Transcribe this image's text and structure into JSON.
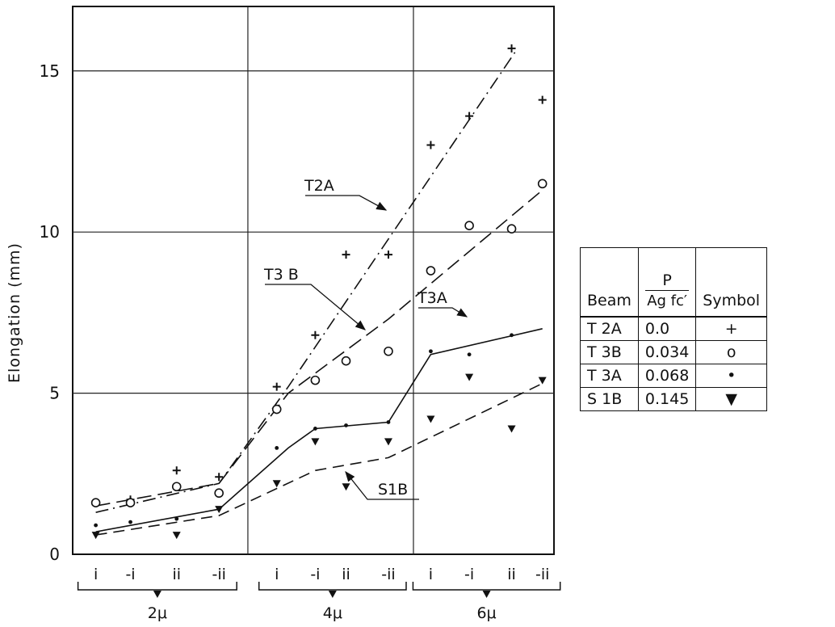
{
  "chart_data": {
    "type": "scatter",
    "ylabel": "Elongation  (mm)",
    "ylim": [
      0,
      17
    ],
    "yticks": [
      0,
      5,
      10,
      15
    ],
    "grid": true,
    "groups": [
      {
        "label": "2μ",
        "conditions": [
          "i",
          "-i",
          "ii",
          "-ii"
        ]
      },
      {
        "label": "4μ",
        "conditions": [
          "i",
          "-i",
          "ii",
          "-ii"
        ]
      },
      {
        "label": "6μ",
        "conditions": [
          "i",
          "-i",
          "ii",
          "-ii"
        ]
      }
    ],
    "series": [
      {
        "name": "T2A",
        "symbol": "+",
        "line_style": "dash-dot",
        "points": [
          {
            "x": 1.0,
            "y": 1.7
          },
          {
            "x": 2.2,
            "y": 2.6
          },
          {
            "x": 3.3,
            "y": 2.4
          },
          {
            "x": 4.8,
            "y": 5.2
          },
          {
            "x": 5.8,
            "y": 6.8
          },
          {
            "x": 6.6,
            "y": 9.3
          },
          {
            "x": 7.7,
            "y": 9.3
          },
          {
            "x": 8.8,
            "y": 12.7
          },
          {
            "x": 9.8,
            "y": 13.6
          },
          {
            "x": 10.9,
            "y": 15.7
          },
          {
            "x": 11.7,
            "y": 14.1
          }
        ],
        "fit": [
          {
            "x": 0.1,
            "y": 1.3
          },
          {
            "x": 3.3,
            "y": 2.2
          },
          {
            "x": 5.1,
            "y": 5.2
          },
          {
            "x": 11.0,
            "y": 15.6
          }
        ]
      },
      {
        "name": "T3B",
        "symbol": "o",
        "line_style": "long-dash",
        "points": [
          {
            "x": 0.1,
            "y": 1.6
          },
          {
            "x": 1.0,
            "y": 1.6
          },
          {
            "x": 2.2,
            "y": 2.1
          },
          {
            "x": 3.3,
            "y": 1.9
          },
          {
            "x": 4.8,
            "y": 4.5
          },
          {
            "x": 5.8,
            "y": 5.4
          },
          {
            "x": 6.6,
            "y": 6.0
          },
          {
            "x": 7.7,
            "y": 6.3
          },
          {
            "x": 8.8,
            "y": 8.8
          },
          {
            "x": 9.8,
            "y": 10.2
          },
          {
            "x": 10.9,
            "y": 10.1
          },
          {
            "x": 11.7,
            "y": 11.5
          }
        ],
        "fit": [
          {
            "x": 0.1,
            "y": 1.5
          },
          {
            "x": 3.3,
            "y": 2.2
          },
          {
            "x": 5.1,
            "y": 5.0
          },
          {
            "x": 7.7,
            "y": 7.3
          },
          {
            "x": 11.7,
            "y": 11.3
          }
        ]
      },
      {
        "name": "T3A",
        "symbol": "•",
        "line_style": "solid",
        "points": [
          {
            "x": 0.1,
            "y": 0.9
          },
          {
            "x": 1.0,
            "y": 1.0
          },
          {
            "x": 2.2,
            "y": 1.1
          },
          {
            "x": 3.3,
            "y": 1.4
          },
          {
            "x": 4.8,
            "y": 3.3
          },
          {
            "x": 5.8,
            "y": 3.9
          },
          {
            "x": 6.6,
            "y": 4.0
          },
          {
            "x": 7.7,
            "y": 4.1
          },
          {
            "x": 8.8,
            "y": 6.3
          },
          {
            "x": 9.8,
            "y": 6.2
          },
          {
            "x": 10.9,
            "y": 6.8
          }
        ],
        "fit": [
          {
            "x": 0.1,
            "y": 0.7
          },
          {
            "x": 3.3,
            "y": 1.4
          },
          {
            "x": 5.1,
            "y": 3.3
          },
          {
            "x": 5.8,
            "y": 3.9
          },
          {
            "x": 7.7,
            "y": 4.1
          },
          {
            "x": 8.8,
            "y": 6.2
          },
          {
            "x": 11.7,
            "y": 7.0
          }
        ]
      },
      {
        "name": "S1B",
        "symbol": "▼",
        "line_style": "dashed",
        "points": [
          {
            "x": 0.1,
            "y": 0.6
          },
          {
            "x": 2.2,
            "y": 0.6
          },
          {
            "x": 3.3,
            "y": 1.4
          },
          {
            "x": 4.8,
            "y": 2.2
          },
          {
            "x": 5.8,
            "y": 3.5
          },
          {
            "x": 6.6,
            "y": 2.1
          },
          {
            "x": 7.7,
            "y": 3.5
          },
          {
            "x": 8.8,
            "y": 4.2
          },
          {
            "x": 9.8,
            "y": 5.5
          },
          {
            "x": 10.9,
            "y": 3.9
          },
          {
            "x": 11.7,
            "y": 5.4
          }
        ],
        "fit": [
          {
            "x": 0.1,
            "y": 0.6
          },
          {
            "x": 3.3,
            "y": 1.2
          },
          {
            "x": 5.8,
            "y": 2.6
          },
          {
            "x": 7.7,
            "y": 3.0
          },
          {
            "x": 11.7,
            "y": 5.3
          }
        ]
      }
    ],
    "annotations": [
      {
        "text": "T2A",
        "target": "T2A"
      },
      {
        "text": "T3 B",
        "target": "T3B"
      },
      {
        "text": "T3A",
        "target": "T3A"
      },
      {
        "text": "S1B",
        "target": "S1B"
      }
    ]
  },
  "legend": {
    "headers": {
      "beam": "Beam",
      "ratio_numerator": "P",
      "ratio_denominator": "Ag fc′",
      "symbol": "Symbol"
    },
    "rows": [
      {
        "beam": "T 2A",
        "ratio": "0.0",
        "symbol": "+"
      },
      {
        "beam": "T 3B",
        "ratio": "0.034",
        "symbol": "o"
      },
      {
        "beam": "T 3A",
        "ratio": "0.068",
        "symbol": "•"
      },
      {
        "beam": "S 1B",
        "ratio": "0.145",
        "symbol": "▼"
      }
    ]
  }
}
